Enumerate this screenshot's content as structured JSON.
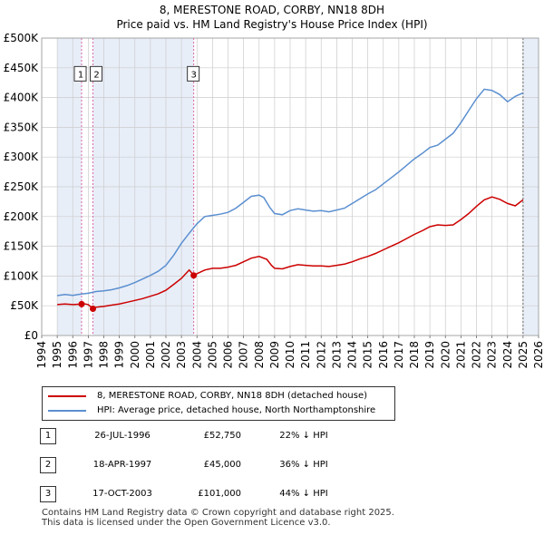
{
  "titles": {
    "line1": "8, MERESTONE ROAD, CORBY, NN18 8DH",
    "line2": "Price paid vs. HM Land Registry's House Price Index (HPI)"
  },
  "colors": {
    "property": "#cc0000",
    "hpi": "#5b8fd0",
    "shade": "#e8eef8",
    "grid": "#cccccc",
    "marker_line": "#dd66aa"
  },
  "legend": {
    "property_label": "8, MERESTONE ROAD, CORBY, NN18 8DH (detached house)",
    "hpi_label": "HPI: Average price, detached house, North Northamptonshire"
  },
  "sales": [
    {
      "num": "1",
      "date": "26-JUL-1996",
      "price": "£52,750",
      "hpi": "22% ↓ HPI"
    },
    {
      "num": "2",
      "date": "18-APR-1997",
      "price": "£45,000",
      "hpi": "36% ↓ HPI"
    },
    {
      "num": "3",
      "date": "17-OCT-2003",
      "price": "£101,000",
      "hpi": "44% ↓ HPI"
    }
  ],
  "footer": {
    "line1": "Contains HM Land Registry data © Crown copyright and database right 2025.",
    "line2": "This data is licensed under the Open Government Licence v3.0."
  },
  "chart_data": {
    "type": "line",
    "title": "8, MERESTONE ROAD, CORBY, NN18 8DH — Price paid vs. HM Land Registry's House Price Index (HPI)",
    "xlabel": "",
    "ylabel": "",
    "xlim": [
      1994,
      2026
    ],
    "ylim": [
      0,
      500000
    ],
    "x_ticks": [
      "1994",
      "1995",
      "1996",
      "1997",
      "1998",
      "1999",
      "2000",
      "2001",
      "2002",
      "2003",
      "2004",
      "2005",
      "2006",
      "2007",
      "2008",
      "2009",
      "2010",
      "2011",
      "2012",
      "2013",
      "2014",
      "2015",
      "2016",
      "2017",
      "2018",
      "2019",
      "2020",
      "2021",
      "2022",
      "2023",
      "2024",
      "2025",
      "2026"
    ],
    "y_ticks": [
      {
        "value": 0,
        "label": "£0"
      },
      {
        "value": 50000,
        "label": "£50K"
      },
      {
        "value": 100000,
        "label": "£100K"
      },
      {
        "value": 150000,
        "label": "£150K"
      },
      {
        "value": 200000,
        "label": "£200K"
      },
      {
        "value": 250000,
        "label": "£250K"
      },
      {
        "value": 300000,
        "label": "£300K"
      },
      {
        "value": 350000,
        "label": "£350K"
      },
      {
        "value": 400000,
        "label": "£400K"
      },
      {
        "value": 450000,
        "label": "£450K"
      },
      {
        "value": 500000,
        "label": "£500K"
      }
    ],
    "shaded_ranges": [
      [
        1995.0,
        1996.57
      ],
      [
        1997.3,
        2003.79
      ],
      [
        2025.0,
        2026.0
      ]
    ],
    "sale_markers": [
      {
        "label": "1",
        "x": 1996.57,
        "y": 52750
      },
      {
        "label": "2",
        "x": 1997.3,
        "y": 45000
      },
      {
        "label": "3",
        "x": 2003.79,
        "y": 101000
      }
    ],
    "series": [
      {
        "name": "HPI: Average price, detached house, North Northamptonshire",
        "points": [
          [
            1995.0,
            67000
          ],
          [
            1995.5,
            69000
          ],
          [
            1996.0,
            67500
          ],
          [
            1996.5,
            69500
          ],
          [
            1997.0,
            71000
          ],
          [
            1997.5,
            74000
          ],
          [
            1998.0,
            75000
          ],
          [
            1998.5,
            77000
          ],
          [
            1999.0,
            80000
          ],
          [
            1999.5,
            84000
          ],
          [
            2000.0,
            89000
          ],
          [
            2000.5,
            95000
          ],
          [
            2001.0,
            101000
          ],
          [
            2001.5,
            108000
          ],
          [
            2002.0,
            118000
          ],
          [
            2002.5,
            135000
          ],
          [
            2003.0,
            155000
          ],
          [
            2003.5,
            172000
          ],
          [
            2004.0,
            188000
          ],
          [
            2004.5,
            200000
          ],
          [
            2005.0,
            202000
          ],
          [
            2005.5,
            204000
          ],
          [
            2006.0,
            207000
          ],
          [
            2006.5,
            214000
          ],
          [
            2007.0,
            224000
          ],
          [
            2007.5,
            234000
          ],
          [
            2008.0,
            236000
          ],
          [
            2008.3,
            232000
          ],
          [
            2008.7,
            215000
          ],
          [
            2009.0,
            205000
          ],
          [
            2009.5,
            203000
          ],
          [
            2010.0,
            210000
          ],
          [
            2010.5,
            213000
          ],
          [
            2011.0,
            211000
          ],
          [
            2011.5,
            209000
          ],
          [
            2012.0,
            210000
          ],
          [
            2012.5,
            208000
          ],
          [
            2013.0,
            211000
          ],
          [
            2013.5,
            214000
          ],
          [
            2014.0,
            222000
          ],
          [
            2014.5,
            230000
          ],
          [
            2015.0,
            238000
          ],
          [
            2015.5,
            245000
          ],
          [
            2016.0,
            255000
          ],
          [
            2016.5,
            265000
          ],
          [
            2017.0,
            275000
          ],
          [
            2017.5,
            286000
          ],
          [
            2018.0,
            297000
          ],
          [
            2018.5,
            306000
          ],
          [
            2019.0,
            316000
          ],
          [
            2019.5,
            320000
          ],
          [
            2020.0,
            330000
          ],
          [
            2020.5,
            340000
          ],
          [
            2021.0,
            358000
          ],
          [
            2021.5,
            378000
          ],
          [
            2022.0,
            398000
          ],
          [
            2022.5,
            414000
          ],
          [
            2023.0,
            412000
          ],
          [
            2023.5,
            405000
          ],
          [
            2024.0,
            393000
          ],
          [
            2024.5,
            402000
          ],
          [
            2025.0,
            408000
          ]
        ]
      },
      {
        "name": "8, MERESTONE ROAD, CORBY, NN18 8DH (detached house)",
        "points": [
          [
            1995.0,
            52000
          ],
          [
            1995.5,
            53000
          ],
          [
            1996.0,
            52000
          ],
          [
            1996.57,
            52750
          ],
          [
            1996.8,
            53000
          ],
          [
            1997.0,
            52000
          ],
          [
            1997.3,
            45000
          ],
          [
            1997.5,
            47500
          ],
          [
            1998.0,
            49000
          ],
          [
            1998.5,
            51000
          ],
          [
            1999.0,
            53000
          ],
          [
            1999.5,
            56000
          ],
          [
            2000.0,
            59000
          ],
          [
            2000.5,
            62000
          ],
          [
            2001.0,
            66000
          ],
          [
            2001.5,
            70000
          ],
          [
            2002.0,
            76000
          ],
          [
            2002.5,
            86000
          ],
          [
            2003.0,
            96000
          ],
          [
            2003.5,
            110000
          ],
          [
            2003.79,
            101000
          ],
          [
            2004.0,
            104000
          ],
          [
            2004.5,
            110000
          ],
          [
            2005.0,
            113000
          ],
          [
            2005.5,
            113000
          ],
          [
            2006.0,
            115000
          ],
          [
            2006.5,
            118000
          ],
          [
            2007.0,
            124000
          ],
          [
            2007.5,
            130000
          ],
          [
            2008.0,
            133000
          ],
          [
            2008.5,
            128000
          ],
          [
            2008.8,
            118000
          ],
          [
            2009.0,
            113000
          ],
          [
            2009.5,
            112000
          ],
          [
            2010.0,
            116000
          ],
          [
            2010.5,
            119000
          ],
          [
            2011.0,
            118000
          ],
          [
            2011.5,
            117000
          ],
          [
            2012.0,
            117000
          ],
          [
            2012.5,
            116000
          ],
          [
            2013.0,
            118000
          ],
          [
            2013.5,
            120000
          ],
          [
            2014.0,
            124000
          ],
          [
            2014.5,
            129000
          ],
          [
            2015.0,
            133000
          ],
          [
            2015.5,
            138000
          ],
          [
            2016.0,
            144000
          ],
          [
            2016.5,
            150000
          ],
          [
            2017.0,
            156000
          ],
          [
            2017.5,
            163000
          ],
          [
            2018.0,
            170000
          ],
          [
            2018.5,
            176000
          ],
          [
            2019.0,
            183000
          ],
          [
            2019.5,
            186000
          ],
          [
            2020.0,
            185000
          ],
          [
            2020.5,
            186000
          ],
          [
            2021.0,
            195000
          ],
          [
            2021.5,
            205000
          ],
          [
            2022.0,
            217000
          ],
          [
            2022.5,
            228000
          ],
          [
            2023.0,
            233000
          ],
          [
            2023.5,
            229000
          ],
          [
            2024.0,
            222000
          ],
          [
            2024.5,
            218000
          ],
          [
            2025.0,
            228000
          ]
        ]
      }
    ]
  }
}
